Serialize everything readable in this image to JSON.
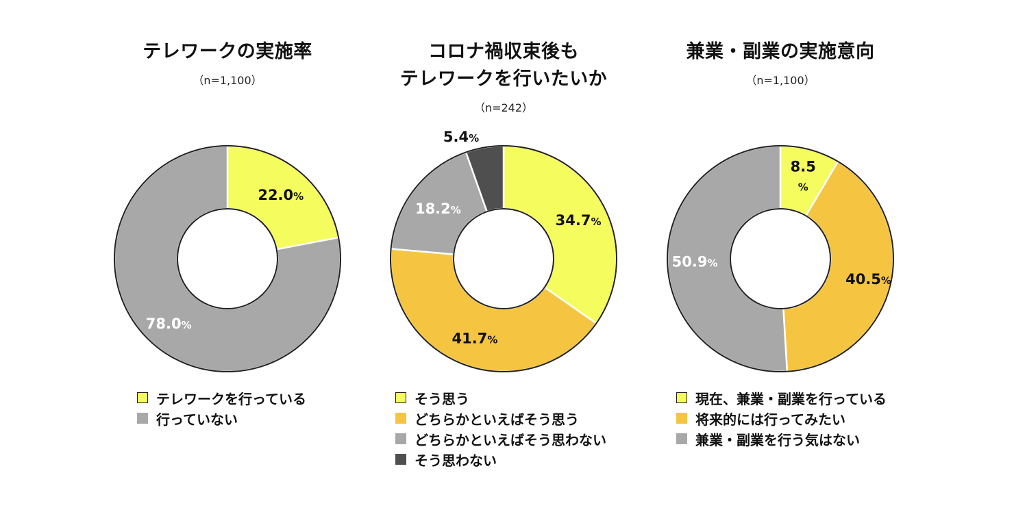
{
  "colors": {
    "yellow": "#F5FC5E",
    "orange": "#F5C542",
    "gray": "#A8A8A8",
    "dark": "#4F4F4F",
    "outline": "#222222"
  },
  "chart_data": [
    {
      "type": "pie",
      "title": "テレワークの実施率",
      "subtitle": "（n=1,100）",
      "categories": [
        "テレワークを行っている",
        "行っていない"
      ],
      "values": [
        22.0,
        78.0
      ],
      "labels": [
        "22.0",
        "78.0"
      ],
      "unit": "%",
      "legend_position": "bottom",
      "slice_colors": [
        "#F5FC5E",
        "#A8A8A8"
      ]
    },
    {
      "type": "pie",
      "title": "コロナ禍収束後も\nテレワークを行いたいか",
      "subtitle": "（n=242）",
      "categories": [
        "そう思う",
        "どちらかといえばそう思う",
        "どちらかといえばそう思わない",
        "そう思わない"
      ],
      "values": [
        34.7,
        41.7,
        18.2,
        5.4
      ],
      "labels": [
        "34.7",
        "41.7",
        "18.2",
        "5.4"
      ],
      "unit": "%",
      "legend_position": "bottom",
      "slice_colors": [
        "#F5FC5E",
        "#F5C542",
        "#A8A8A8",
        "#4F4F4F"
      ]
    },
    {
      "type": "pie",
      "title": "兼業・副業の実施意向",
      "subtitle": "（n=1,100）",
      "categories": [
        "現在、兼業・副業を行っている",
        "将来的には行ってみたい",
        "兼業・副業を行う気はない"
      ],
      "values": [
        8.5,
        40.5,
        50.9
      ],
      "labels": [
        "8.5",
        "40.5",
        "50.9"
      ],
      "unit": "%",
      "legend_position": "bottom",
      "slice_colors": [
        "#F5FC5E",
        "#F5C542",
        "#A8A8A8"
      ]
    }
  ]
}
